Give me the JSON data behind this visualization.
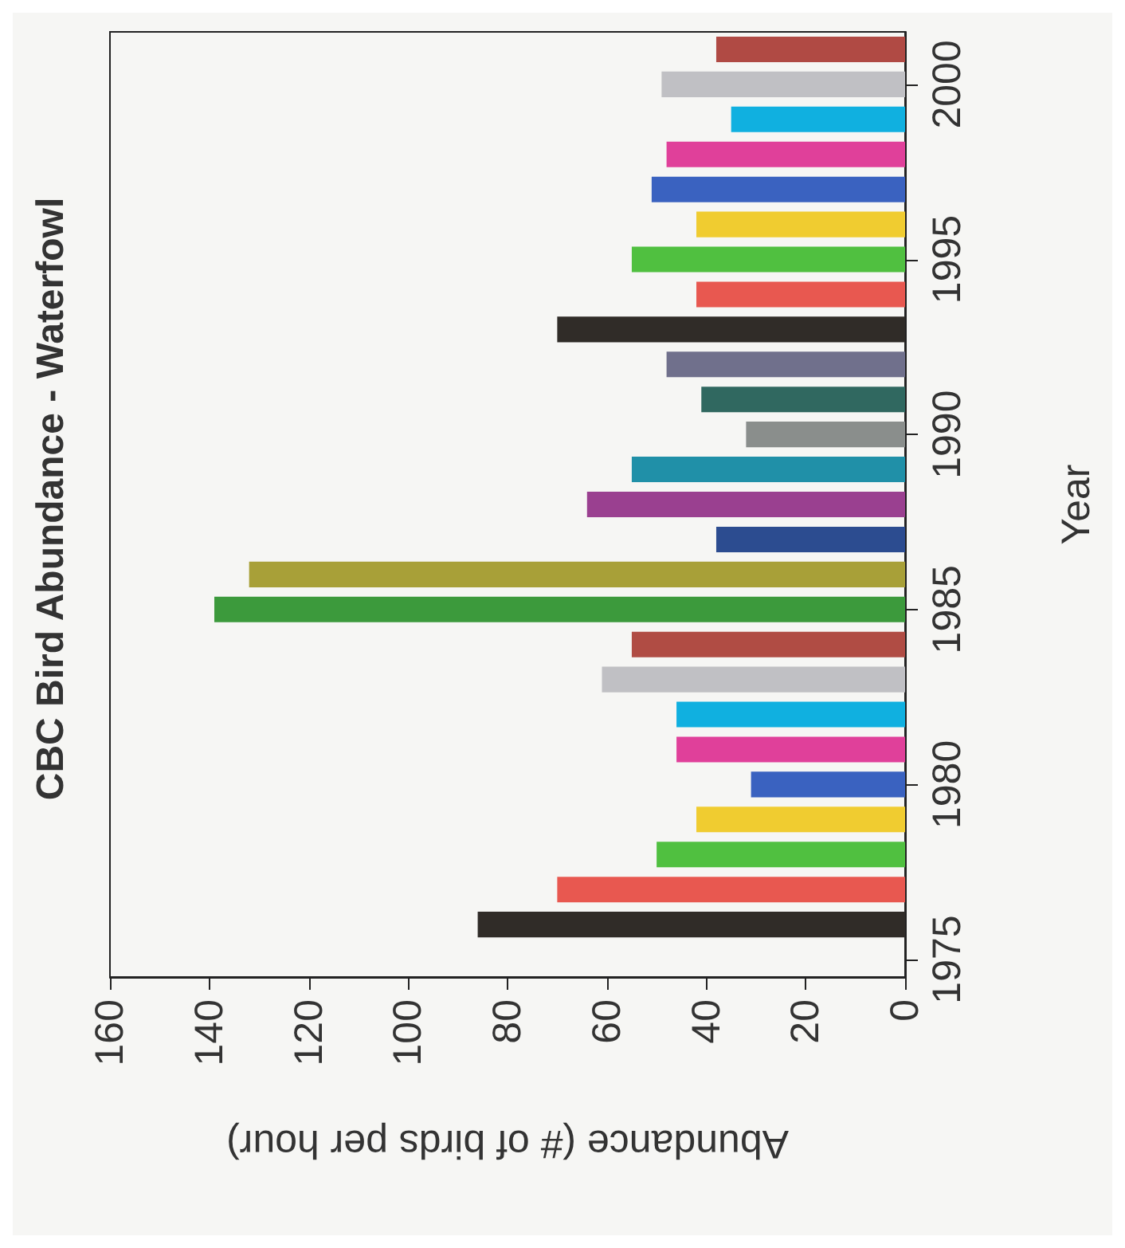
{
  "chart_data": {
    "type": "bar",
    "orientation": "horizontal",
    "title": "CBC Bird Abundance - Waterfowl",
    "xlabel": "Abundance (# of birds per hour)",
    "ylabel": "Year",
    "categories": [
      null,
      "2000",
      null,
      null,
      null,
      null,
      "1995",
      null,
      null,
      null,
      null,
      "1990",
      null,
      null,
      null,
      null,
      "1985",
      null,
      null,
      null,
      null,
      "1980",
      null,
      null,
      null,
      null,
      "1975"
    ],
    "values": [
      38,
      49,
      35,
      48,
      51,
      42,
      55,
      42,
      70,
      48,
      41,
      32,
      55,
      64,
      38,
      132,
      139,
      55,
      61,
      46,
      46,
      31,
      42,
      50,
      70,
      86,
      null
    ],
    "colors": [
      "#b04a44",
      "#c0c0c4",
      "#10b0e0",
      "#e0409a",
      "#3a62c0",
      "#f0cc30",
      "#50c040",
      "#e85850",
      "#302c28",
      "#70708c",
      "#306860",
      "#8a8e8c",
      "#2090a8",
      "#9a4090",
      "#2c4c90",
      "#a8a038",
      "#3c9a3c",
      "#b04c44",
      "#c0c0c4",
      "#10b0e0",
      "#e0409a",
      "#3a62c0",
      "#f0cc30",
      "#50c040",
      "#e85850",
      "#302c28",
      null
    ],
    "xlim": [
      160,
      0
    ],
    "xticks": [
      160,
      140,
      120,
      100,
      80,
      60,
      40,
      20,
      0
    ],
    "grid": false
  }
}
